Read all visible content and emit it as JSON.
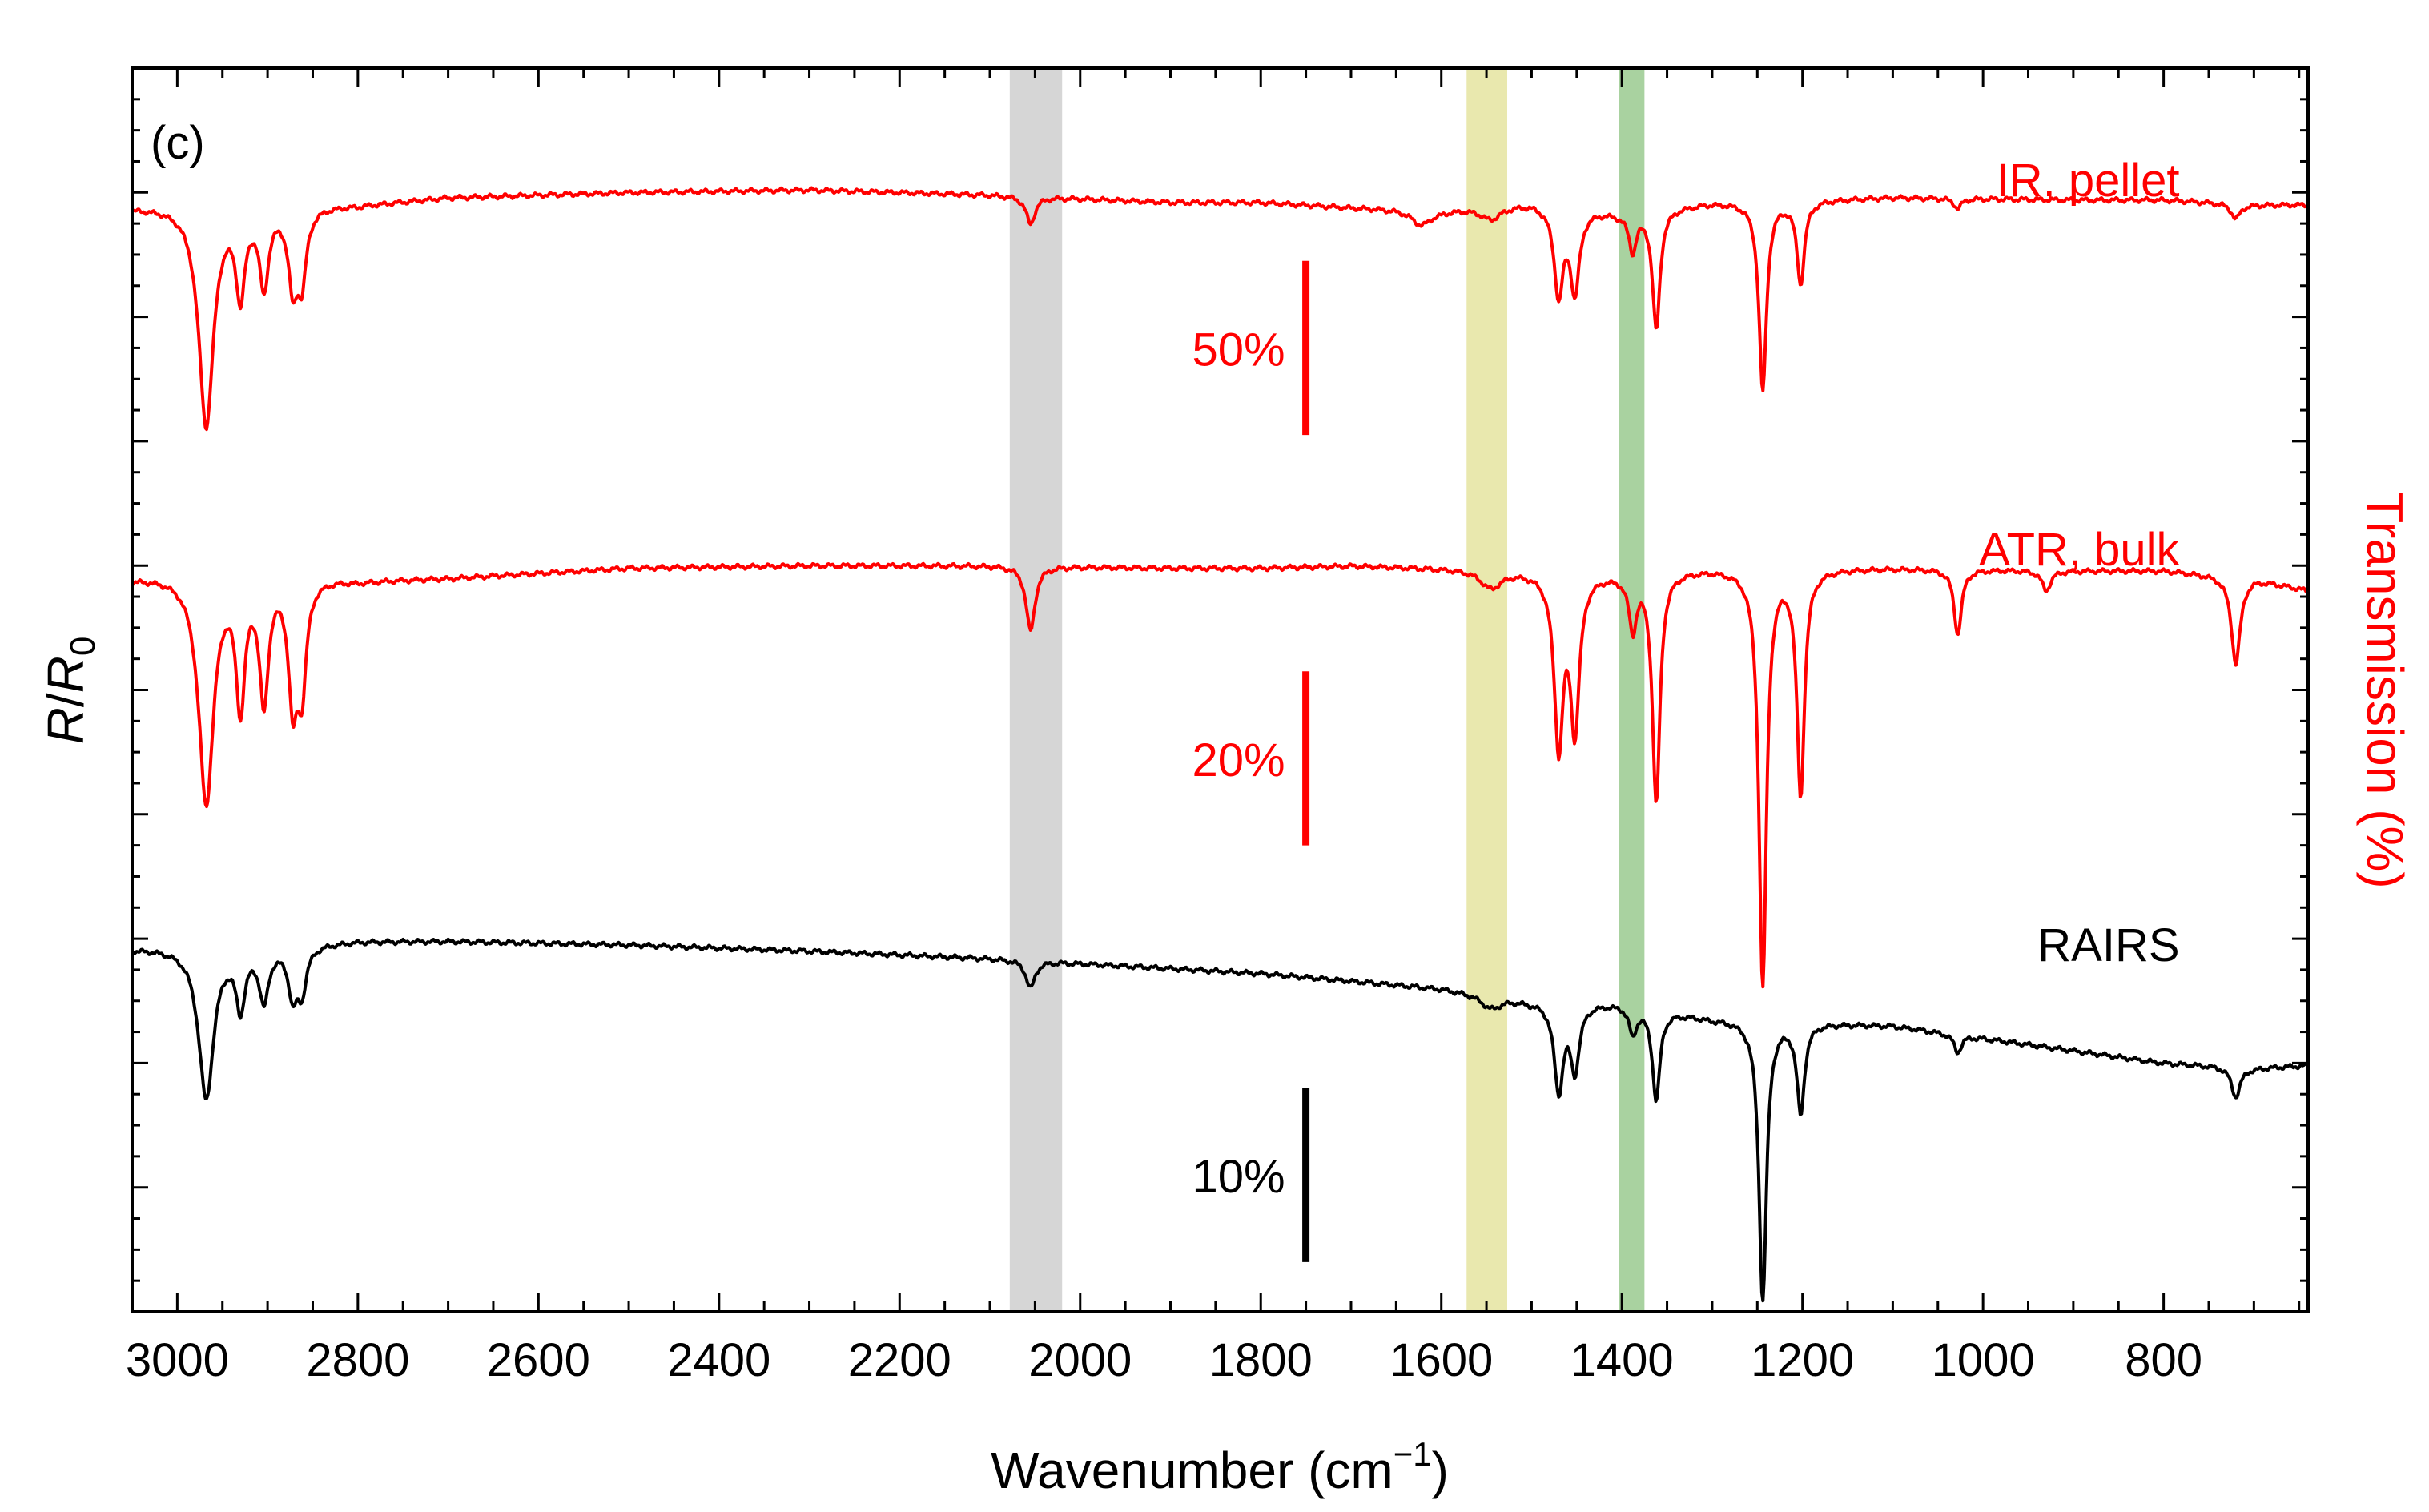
{
  "chart_data": {
    "type": "line",
    "panel_label": "(c)",
    "xlabel_text": "Wavenumber (cm",
    "xlabel_exp": "−1",
    "xlabel_close": ")",
    "ylabel_left_main": "R",
    "ylabel_left_slash": "/",
    "ylabel_left_r": "R",
    "ylabel_left_sub": "0",
    "ylabel_right": "Transmission (%)",
    "xlim": [
      3050,
      640
    ],
    "x_inverted": true,
    "ylim": [
      0,
      10
    ],
    "xticks": [
      3000,
      2800,
      2600,
      2400,
      2200,
      2000,
      1800,
      1600,
      1400,
      1200,
      1000,
      800
    ],
    "xtick_labels": [
      "3000",
      "2800",
      "2600",
      "2400",
      "2200",
      "2000",
      "1800",
      "1600",
      "1400",
      "1200",
      "1000",
      "800"
    ],
    "bands": [
      {
        "name": "gray-band",
        "from": 2078,
        "to": 2020,
        "color": "#d6d6d6"
      },
      {
        "name": "yellow-band",
        "from": 1572,
        "to": 1527,
        "color": "#e9e8ae"
      },
      {
        "name": "green-band",
        "from": 1403,
        "to": 1375,
        "color": "#a9d2a0"
      }
    ],
    "series": [
      {
        "name": "IR, pellet",
        "color": "#ff0000",
        "label_pos": [
          1350,
          9.1
        ],
        "baseline": 8.85,
        "shape": [
          [
            3050,
            8.88
          ],
          [
            2960,
            8.92
          ],
          [
            2900,
            8.9
          ],
          [
            2800,
            8.9
          ],
          [
            2700,
            8.96
          ],
          [
            2500,
            9.0
          ],
          [
            2300,
            9.02
          ],
          [
            2100,
            8.98
          ],
          [
            1900,
            8.92
          ],
          [
            1800,
            8.92
          ],
          [
            1700,
            8.88
          ],
          [
            1600,
            8.86
          ],
          [
            1500,
            8.92
          ],
          [
            1400,
            8.84
          ],
          [
            1300,
            8.92
          ],
          [
            1100,
            8.96
          ],
          [
            900,
            8.94
          ],
          [
            800,
            8.94
          ],
          [
            700,
            8.9
          ],
          [
            640,
            8.9
          ]
        ],
        "peaks": [
          {
            "x": 2968,
            "depth": 1.78,
            "w": 10
          },
          {
            "x": 2930,
            "depth": 0.68,
            "w": 6
          },
          {
            "x": 2904,
            "depth": 0.62,
            "w": 6
          },
          {
            "x": 2872,
            "depth": 0.6,
            "w": 6
          },
          {
            "x": 2862,
            "depth": 0.55,
            "w": 6
          },
          {
            "x": 2055,
            "depth": 0.22,
            "w": 6
          },
          {
            "x": 1622,
            "depth": 0.12,
            "w": 14
          },
          {
            "x": 1545,
            "depth": 0.1,
            "w": 14
          },
          {
            "x": 1470,
            "depth": 0.7,
            "w": 6
          },
          {
            "x": 1452,
            "depth": 0.66,
            "w": 6
          },
          {
            "x": 1388,
            "depth": 0.3,
            "w": 5
          },
          {
            "x": 1362,
            "depth": 0.96,
            "w": 5
          },
          {
            "x": 1244,
            "depth": 1.52,
            "w": 5
          },
          {
            "x": 1202,
            "depth": 0.66,
            "w": 5
          },
          {
            "x": 1028,
            "depth": 0.08,
            "w": 5
          },
          {
            "x": 720,
            "depth": 0.12,
            "w": 6
          }
        ]
      },
      {
        "name": "ATR, bulk",
        "color": "#ff0000",
        "label_pos": [
          1350,
          6.13
        ],
        "baseline": 5.92,
        "shape": [
          [
            3050,
            5.9
          ],
          [
            2960,
            5.96
          ],
          [
            2900,
            5.96
          ],
          [
            2800,
            5.88
          ],
          [
            2700,
            5.9
          ],
          [
            2500,
            5.98
          ],
          [
            2300,
            6.0
          ],
          [
            2100,
            6.0
          ],
          [
            1900,
            5.98
          ],
          [
            1800,
            5.98
          ],
          [
            1700,
            6.0
          ],
          [
            1600,
            5.98
          ],
          [
            1500,
            5.96
          ],
          [
            1400,
            5.94
          ],
          [
            1300,
            5.98
          ],
          [
            1100,
            5.98
          ],
          [
            900,
            5.96
          ],
          [
            800,
            5.96
          ],
          [
            700,
            5.9
          ],
          [
            640,
            5.8
          ]
        ],
        "peaks": [
          {
            "x": 2968,
            "depth": 1.85,
            "w": 10
          },
          {
            "x": 2930,
            "depth": 1.02,
            "w": 6
          },
          {
            "x": 2904,
            "depth": 1.0,
            "w": 6
          },
          {
            "x": 2872,
            "depth": 0.95,
            "w": 6
          },
          {
            "x": 2862,
            "depth": 0.82,
            "w": 6
          },
          {
            "x": 2055,
            "depth": 0.52,
            "w": 6
          },
          {
            "x": 1545,
            "depth": 0.14,
            "w": 14
          },
          {
            "x": 1470,
            "depth": 1.36,
            "w": 6
          },
          {
            "x": 1452,
            "depth": 1.22,
            "w": 6
          },
          {
            "x": 1388,
            "depth": 0.42,
            "w": 5
          },
          {
            "x": 1362,
            "depth": 1.85,
            "w": 5
          },
          {
            "x": 1244,
            "depth": 3.35,
            "w": 5
          },
          {
            "x": 1202,
            "depth": 1.8,
            "w": 5
          },
          {
            "x": 1028,
            "depth": 0.52,
            "w": 5
          },
          {
            "x": 930,
            "depth": 0.16,
            "w": 6
          },
          {
            "x": 720,
            "depth": 0.7,
            "w": 6
          }
        ]
      },
      {
        "name": "RAIRS",
        "color": "#000000",
        "label_pos": [
          1350,
          2.95
        ],
        "baseline": 2.95,
        "shape": [
          [
            3050,
            2.92
          ],
          [
            2960,
            2.94
          ],
          [
            2900,
            2.94
          ],
          [
            2800,
            2.98
          ],
          [
            2700,
            2.98
          ],
          [
            2500,
            2.95
          ],
          [
            2300,
            2.9
          ],
          [
            2100,
            2.84
          ],
          [
            1900,
            2.76
          ],
          [
            1800,
            2.72
          ],
          [
            1700,
            2.66
          ],
          [
            1600,
            2.6
          ],
          [
            1500,
            2.5
          ],
          [
            1400,
            2.48
          ],
          [
            1300,
            2.36
          ],
          [
            1100,
            2.3
          ],
          [
            1000,
            2.2
          ],
          [
            900,
            2.1
          ],
          [
            800,
            2.0
          ],
          [
            700,
            1.96
          ],
          [
            640,
            1.98
          ]
        ],
        "peaks": [
          {
            "x": 2968,
            "depth": 1.22,
            "w": 10
          },
          {
            "x": 2930,
            "depth": 0.46,
            "w": 6
          },
          {
            "x": 2904,
            "depth": 0.42,
            "w": 6
          },
          {
            "x": 2872,
            "depth": 0.38,
            "w": 6
          },
          {
            "x": 2862,
            "depth": 0.34,
            "w": 6
          },
          {
            "x": 2055,
            "depth": 0.22,
            "w": 6
          },
          {
            "x": 1545,
            "depth": 0.1,
            "w": 14
          },
          {
            "x": 1470,
            "depth": 0.7,
            "w": 6
          },
          {
            "x": 1452,
            "depth": 0.52,
            "w": 6
          },
          {
            "x": 1388,
            "depth": 0.22,
            "w": 5
          },
          {
            "x": 1362,
            "depth": 0.72,
            "w": 5
          },
          {
            "x": 1244,
            "depth": 2.25,
            "w": 5
          },
          {
            "x": 1202,
            "depth": 0.72,
            "w": 5
          },
          {
            "x": 1028,
            "depth": 0.14,
            "w": 5
          },
          {
            "x": 720,
            "depth": 0.24,
            "w": 6
          }
        ]
      }
    ],
    "scale_bars": [
      {
        "label": "50%",
        "x": 1750,
        "y_from": 7.05,
        "y_to": 8.45,
        "color": "#ff0000"
      },
      {
        "label": "20%",
        "x": 1750,
        "y_from": 3.75,
        "y_to": 5.15,
        "color": "#ff0000"
      },
      {
        "label": "10%",
        "x": 1750,
        "y_from": 0.4,
        "y_to": 1.8,
        "color": "#000000"
      }
    ]
  }
}
